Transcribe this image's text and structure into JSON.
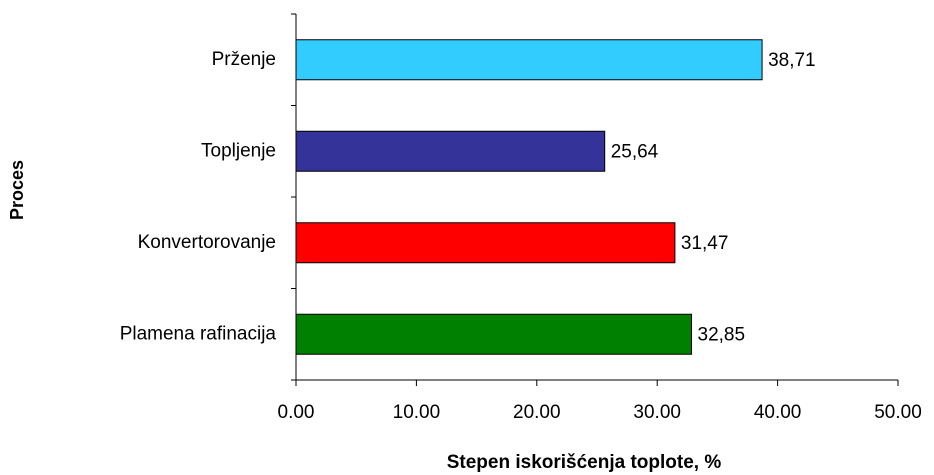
{
  "chart_data": {
    "type": "barh",
    "xlabel": "Stepen iskorišćenja toplote, %",
    "ylabel": "Proces",
    "categories": [
      "Prženje",
      "Topljenje",
      "Konvertorovanje",
      "Plamena rafinacija"
    ],
    "values": [
      38.71,
      25.64,
      31.47,
      32.85
    ],
    "value_labels": [
      "38,71",
      "25,64",
      "31,47",
      "32,85"
    ],
    "colors": [
      "#33ccff",
      "#333399",
      "#ff0000",
      "#008000"
    ],
    "xlim": [
      0,
      50
    ],
    "xticks": [
      {
        "value": 0,
        "label": "0.00"
      },
      {
        "value": 10,
        "label": "10.00"
      },
      {
        "value": 20,
        "label": "20.00"
      },
      {
        "value": 30,
        "label": "30.00"
      },
      {
        "value": 40,
        "label": "40.00"
      },
      {
        "value": 50,
        "label": "50.00"
      }
    ]
  }
}
